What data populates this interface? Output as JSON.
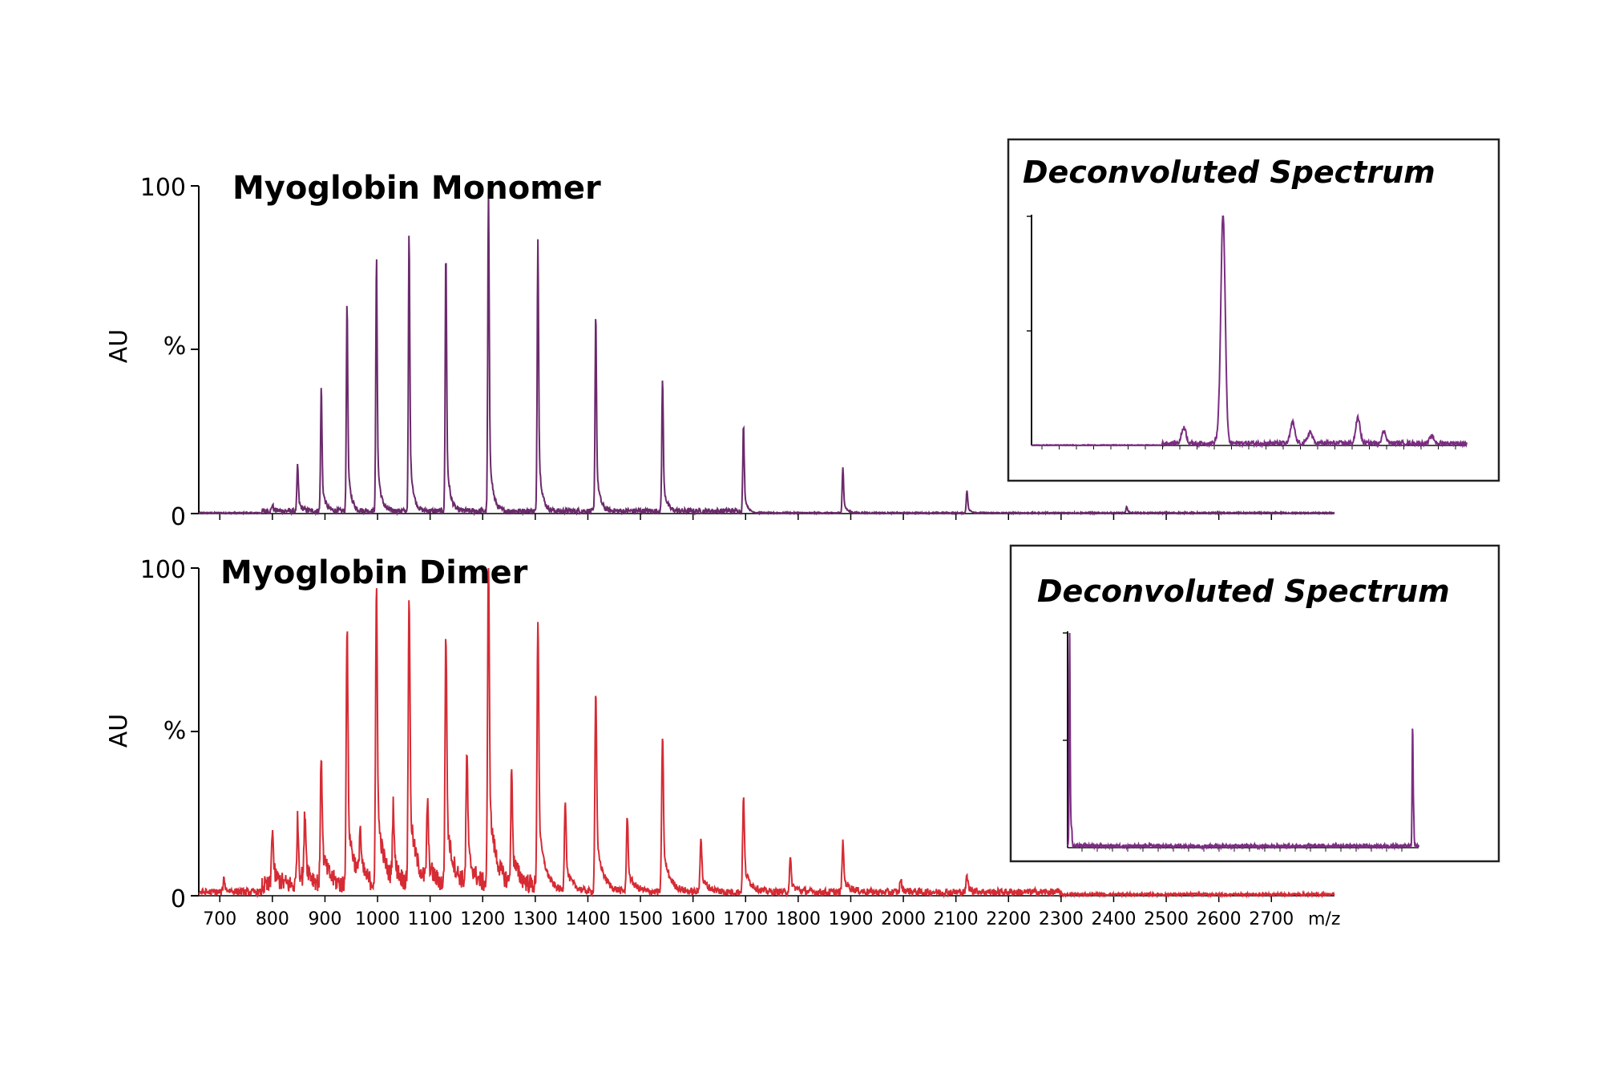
{
  "colors": {
    "monomer": "#6b2a6b",
    "dimer": "#d62b34",
    "inset_trace": "#7b2d82",
    "axis": "#000000"
  },
  "chart_data": [
    {
      "type": "line",
      "title": "Myoglobin Monomer",
      "ylabel": "AU",
      "ylabel_unit": "%",
      "ylim": [
        0,
        100
      ],
      "y_ticks": [
        "0",
        "100"
      ],
      "xlim": [
        660,
        2820
      ],
      "peaks": {
        "x": [
          800,
          848,
          893,
          942,
          998,
          1060,
          1130,
          1211,
          1305,
          1415,
          1542,
          1696,
          1885,
          2121,
          2425
        ],
        "y": [
          2,
          14,
          38,
          64,
          78,
          85,
          80,
          98,
          83,
          61,
          41,
          26,
          14,
          7,
          2
        ]
      }
    },
    {
      "type": "line",
      "title": "Myoglobin Dimer",
      "ylabel": "AU",
      "ylabel_unit": "%",
      "ylim": [
        0,
        100
      ],
      "y_ticks": [
        "0",
        "100"
      ],
      "xlabel": "m/z",
      "xlim": [
        660,
        2820
      ],
      "x_ticks": [
        "700",
        "800",
        "900",
        "1000",
        "1100",
        "1200",
        "1300",
        "1400",
        "1500",
        "1600",
        "1700",
        "1800",
        "1900",
        "2000",
        "2100",
        "2200",
        "2300",
        "2400",
        "2500",
        "2600",
        "2700"
      ],
      "peaks": {
        "x": [
          708,
          800,
          848,
          862,
          893,
          942,
          967,
          998,
          1030,
          1060,
          1095,
          1130,
          1170,
          1211,
          1255,
          1305,
          1357,
          1415,
          1475,
          1542,
          1615,
          1696,
          1785,
          1885,
          1995,
          2121
        ],
        "y": [
          4,
          18,
          20,
          21,
          40,
          79,
          15,
          91,
          23,
          89,
          24,
          77,
          40,
          100,
          34,
          83,
          28,
          62,
          23,
          48,
          17,
          29,
          10,
          15,
          4,
          5
        ]
      }
    },
    {
      "type": "line",
      "title": "Deconvoluted Spectrum",
      "ylim": [
        0,
        100
      ],
      "xlim": [
        16600,
        17600
      ],
      "peaks": {
        "x": [
          16950,
          17030,
          17040,
          17200,
          17240,
          17350,
          17410,
          17520
        ],
        "y": [
          7,
          3,
          100,
          9,
          5,
          11,
          5,
          3
        ]
      }
    },
    {
      "type": "line",
      "title": "Deconvoluted Spectrum",
      "ylim": [
        0,
        100
      ],
      "xlim": [
        16900,
        34200
      ],
      "peaks": {
        "x": [
          17000,
          17050,
          17100,
          33900,
          33950
        ],
        "y": [
          100,
          12,
          8,
          55,
          15
        ]
      }
    }
  ]
}
